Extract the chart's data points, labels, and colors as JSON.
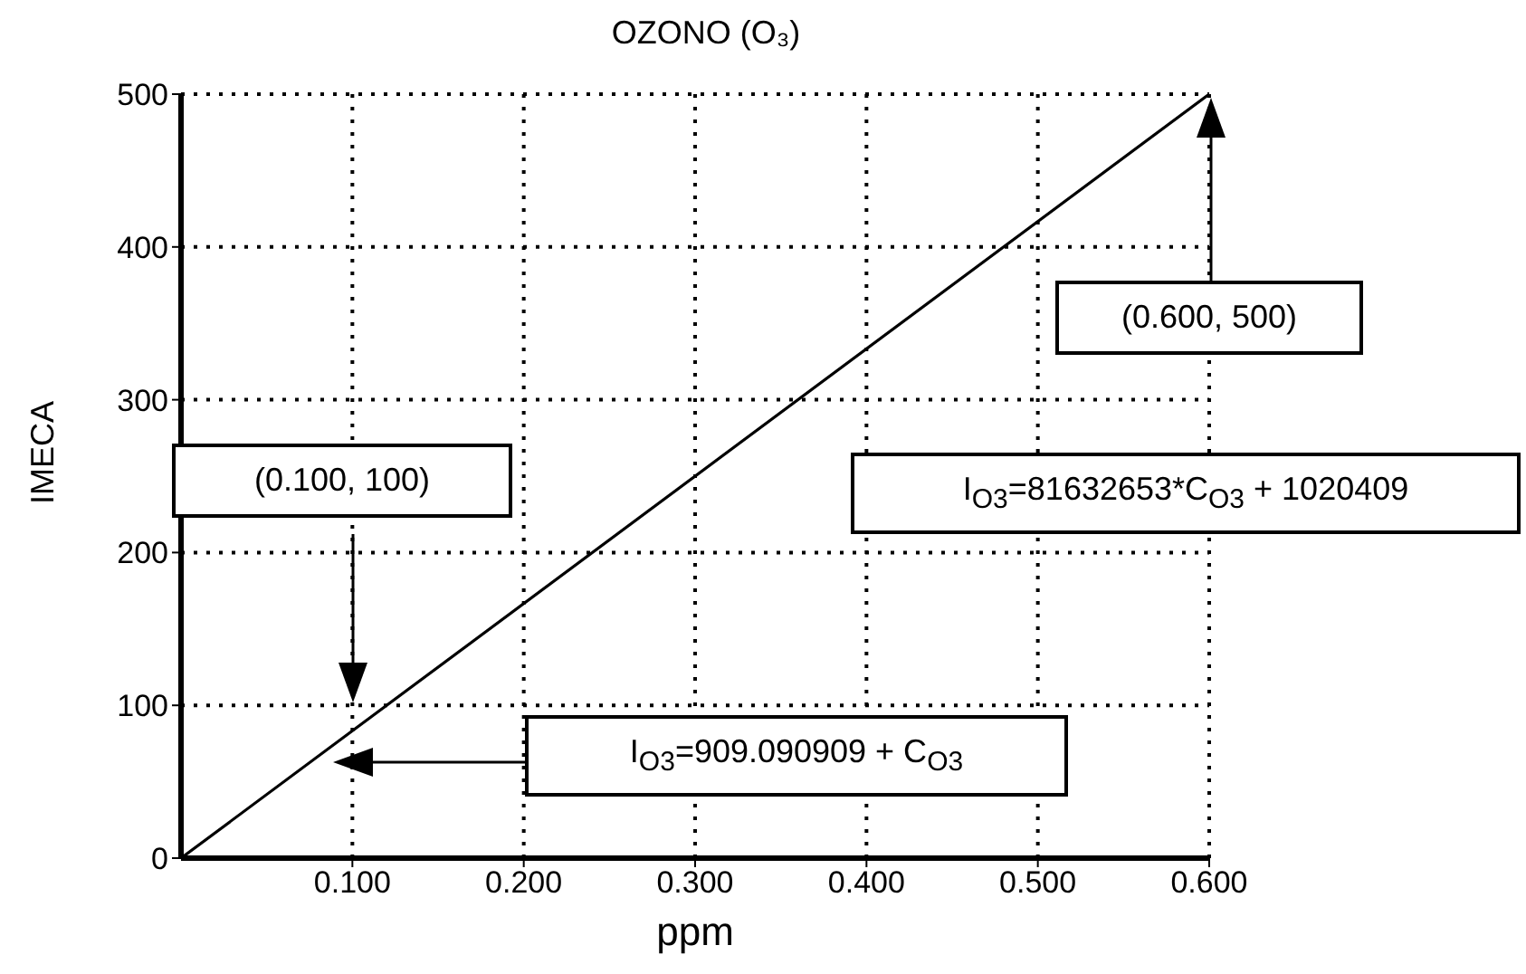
{
  "chart_data": {
    "type": "line",
    "title": "OZONO (O₃)",
    "xlabel": "ppm",
    "ylabel": "IMECA",
    "x": [
      0,
      0.6
    ],
    "series": [
      {
        "color": "#000000",
        "values": [
          0,
          500
        ]
      }
    ],
    "xlim": [
      0,
      0.6
    ],
    "xticks": [
      {
        "value": 0.1,
        "label": "0.100"
      },
      {
        "value": 0.2,
        "label": "0.200"
      },
      {
        "value": 0.3,
        "label": "0.300"
      },
      {
        "value": 0.4,
        "label": "0.400"
      },
      {
        "value": 0.5,
        "label": "0.500"
      },
      {
        "value": 0.6,
        "label": "0.600"
      }
    ],
    "ylim": [
      0,
      500
    ],
    "yticks": [
      0,
      100,
      200,
      300,
      400,
      500
    ],
    "grid": true,
    "line_style": "solid",
    "annotations": [
      "(0.600, 500)",
      "(0.100, 100)",
      "I$_{O3}$=81632653*C$_{O3}$ + 1020409",
      "I$_{O3}$=909.090909 + C$_{O3}$"
    ]
  }
}
